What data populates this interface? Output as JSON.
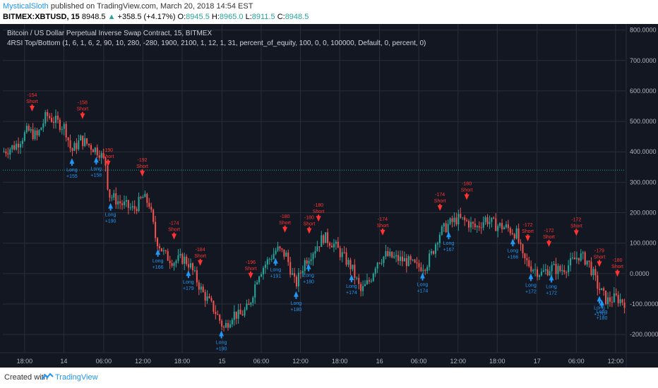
{
  "header": {
    "author": "MysticalSloth",
    "published_text": "published on TradingView.com, March 20, 2018 14:54 EST",
    "symbol": "BITMEX:XBTUSD, 15",
    "last": "8948.5",
    "arrow": "▲",
    "change": "+358.5 (+4.17%)",
    "o_label": "O:",
    "o_value": "8945.5",
    "h_label": "H:",
    "h_value": "8965.0",
    "l_label": "L:",
    "l_value": "8911.5",
    "c_label": "C:",
    "c_value": "8948.5"
  },
  "chart_data": {
    "type": "candlestick",
    "title": "Bitcoin / US Dollar Perpetual Inverse Swap Contract, 15, BITMEX",
    "subtitle": "4RSI Top/Bottom (1, 6, 1, 6, 2, 90, 10, 280, -280, 1900, 2100, 1, 12, 1, 31, percent_of_equity, 100, 0, 0, 100000, Default, 0, percent, 0)",
    "ylim": [
      -260,
      820
    ],
    "y_ticks": [
      800,
      700,
      600,
      500,
      400,
      300,
      200,
      100,
      0,
      -100,
      -200
    ],
    "y_tick_labels": [
      "800.0000",
      "700.0000",
      "600.0000",
      "500.0000",
      "400.0000",
      "300.0000",
      "200.0000",
      "100.0000",
      "0.0000",
      "-100.0000",
      "-200.0000"
    ],
    "x_ticks": [
      "18:00",
      "14",
      "06:00",
      "12:00",
      "18:00",
      "15",
      "06:00",
      "12:00",
      "18:00",
      "16",
      "06:00",
      "12:00",
      "18:00",
      "17",
      "06:00",
      "12:00"
    ],
    "x_tick_pos": [
      0.035,
      0.098,
      0.162,
      0.225,
      0.288,
      0.352,
      0.415,
      0.478,
      0.541,
      0.605,
      0.668,
      0.731,
      0.794,
      0.858,
      0.921,
      0.984
    ],
    "hline": 340,
    "grid": true,
    "price_path": [
      [
        0.0,
        400
      ],
      [
        0.02,
        420
      ],
      [
        0.04,
        470
      ],
      [
        0.055,
        450
      ],
      [
        0.07,
        520
      ],
      [
        0.085,
        500
      ],
      [
        0.1,
        480
      ],
      [
        0.11,
        400
      ],
      [
        0.125,
        440
      ],
      [
        0.14,
        420
      ],
      [
        0.155,
        400
      ],
      [
        0.165,
        360
      ],
      [
        0.17,
        260
      ],
      [
        0.19,
        230
      ],
      [
        0.21,
        210
      ],
      [
        0.225,
        250
      ],
      [
        0.235,
        230
      ],
      [
        0.245,
        120
      ],
      [
        0.26,
        60
      ],
      [
        0.275,
        40
      ],
      [
        0.29,
        50
      ],
      [
        0.3,
        30
      ],
      [
        0.32,
        -60
      ],
      [
        0.34,
        -120
      ],
      [
        0.355,
        -180
      ],
      [
        0.37,
        -130
      ],
      [
        0.38,
        -140
      ],
      [
        0.395,
        -110
      ],
      [
        0.41,
        0
      ],
      [
        0.425,
        40
      ],
      [
        0.44,
        80
      ],
      [
        0.455,
        60
      ],
      [
        0.47,
        -40
      ],
      [
        0.485,
        40
      ],
      [
        0.5,
        80
      ],
      [
        0.515,
        120
      ],
      [
        0.53,
        100
      ],
      [
        0.545,
        60
      ],
      [
        0.56,
        20
      ],
      [
        0.575,
        -60
      ],
      [
        0.59,
        -20
      ],
      [
        0.6,
        40
      ],
      [
        0.615,
        60
      ],
      [
        0.63,
        50
      ],
      [
        0.65,
        40
      ],
      [
        0.665,
        20
      ],
      [
        0.68,
        30
      ],
      [
        0.69,
        70
      ],
      [
        0.7,
        130
      ],
      [
        0.715,
        160
      ],
      [
        0.73,
        180
      ],
      [
        0.745,
        170
      ],
      [
        0.76,
        150
      ],
      [
        0.775,
        180
      ],
      [
        0.79,
        160
      ],
      [
        0.81,
        150
      ],
      [
        0.825,
        130
      ],
      [
        0.835,
        50
      ],
      [
        0.85,
        20
      ],
      [
        0.865,
        0
      ],
      [
        0.88,
        20
      ],
      [
        0.895,
        10
      ],
      [
        0.91,
        30
      ],
      [
        0.925,
        60
      ],
      [
        0.94,
        40
      ],
      [
        0.955,
        -40
      ],
      [
        0.97,
        -90
      ],
      [
        0.985,
        -80
      ],
      [
        1.0,
        -95
      ]
    ],
    "signals": [
      {
        "type": "short",
        "x": 0.047,
        "value": -154,
        "label": "Short",
        "amount": "-154"
      },
      {
        "type": "long",
        "x": 0.111,
        "value": 155,
        "label": "Long",
        "amount": "+155"
      },
      {
        "type": "short",
        "x": 0.128,
        "value": -158,
        "label": "Short",
        "amount": "-158"
      },
      {
        "type": "long",
        "x": 0.15,
        "value": 158,
        "label": "Long",
        "amount": "+158"
      },
      {
        "type": "short",
        "x": 0.169,
        "value": -190,
        "label": "Short",
        "amount": "-190"
      },
      {
        "type": "long",
        "x": 0.173,
        "value": 190,
        "label": "Long",
        "amount": "+190"
      },
      {
        "type": "short",
        "x": 0.224,
        "value": -192,
        "label": "Short",
        "amount": "-192"
      },
      {
        "type": "long",
        "x": 0.249,
        "value": 166,
        "label": "Long",
        "amount": "+166"
      },
      {
        "type": "short",
        "x": 0.275,
        "value": -174,
        "label": "Short",
        "amount": "-174"
      },
      {
        "type": "long",
        "x": 0.298,
        "value": 179,
        "label": "Long",
        "amount": "+179"
      },
      {
        "type": "short",
        "x": 0.317,
        "value": -184,
        "label": "Short",
        "amount": "-184"
      },
      {
        "type": "long",
        "x": 0.351,
        "value": 190,
        "label": "Long",
        "amount": "+190"
      },
      {
        "type": "short",
        "x": 0.398,
        "value": -196,
        "label": "Short",
        "amount": "-196"
      },
      {
        "type": "long",
        "x": 0.438,
        "value": 191,
        "label": "Long",
        "amount": "+191"
      },
      {
        "type": "short",
        "x": 0.453,
        "value": -180,
        "label": "Short",
        "amount": "-180"
      },
      {
        "type": "long",
        "x": 0.471,
        "value": 180,
        "label": "Long",
        "amount": "+180"
      },
      {
        "type": "short",
        "x": 0.492,
        "value": -180,
        "label": "Short",
        "amount": "-180"
      },
      {
        "type": "long",
        "x": 0.491,
        "value": 180,
        "label": "Long",
        "amount": "+180"
      },
      {
        "type": "short",
        "x": 0.507,
        "value": -180,
        "label": "Short",
        "amount": "-180"
      },
      {
        "type": "long",
        "x": 0.56,
        "value": 174,
        "label": "Long",
        "amount": "+174"
      },
      {
        "type": "short",
        "x": 0.61,
        "value": -174,
        "label": "Short",
        "amount": "-174"
      },
      {
        "type": "long",
        "x": 0.674,
        "value": 174,
        "label": "Long",
        "amount": "+174"
      },
      {
        "type": "short",
        "x": 0.702,
        "value": -174,
        "label": "Short",
        "amount": "-174"
      },
      {
        "type": "long",
        "x": 0.716,
        "value": 167,
        "label": "Long",
        "amount": "+167"
      },
      {
        "type": "short",
        "x": 0.745,
        "value": -180,
        "label": "Short",
        "amount": "-180"
      },
      {
        "type": "long",
        "x": 0.819,
        "value": 166,
        "label": "Long",
        "amount": "+166"
      },
      {
        "type": "short",
        "x": 0.843,
        "value": -172,
        "label": "Short",
        "amount": "-172"
      },
      {
        "type": "long",
        "x": 0.848,
        "value": 172,
        "label": "Long",
        "amount": "+172"
      },
      {
        "type": "short",
        "x": 0.877,
        "value": -172,
        "label": "Short",
        "amount": "-172"
      },
      {
        "type": "long",
        "x": 0.881,
        "value": 172,
        "label": "Long",
        "amount": "+172"
      },
      {
        "type": "short",
        "x": 0.921,
        "value": -172,
        "label": "Short",
        "amount": "-172"
      },
      {
        "type": "short",
        "x": 0.958,
        "value": -179,
        "label": "Short",
        "amount": "-179"
      },
      {
        "type": "long",
        "x": 0.958,
        "value": 170,
        "label": "Long",
        "amount": "+170"
      },
      {
        "type": "long",
        "x": 0.962,
        "value": 180,
        "label": "Long",
        "amount": "+180"
      },
      {
        "type": "short",
        "x": 0.987,
        "value": -180,
        "label": "Short",
        "amount": "-180"
      }
    ]
  },
  "colors": {
    "background": "#131722",
    "grid": "#2a2e39",
    "up": "#26a69a",
    "down": "#ef5350",
    "long": "#2196f3",
    "short": "#ff3333",
    "hline": "#26a69a",
    "axis_text": "#b2b5be"
  },
  "footer": {
    "created_with": "Created with",
    "brand": "TradingView"
  }
}
